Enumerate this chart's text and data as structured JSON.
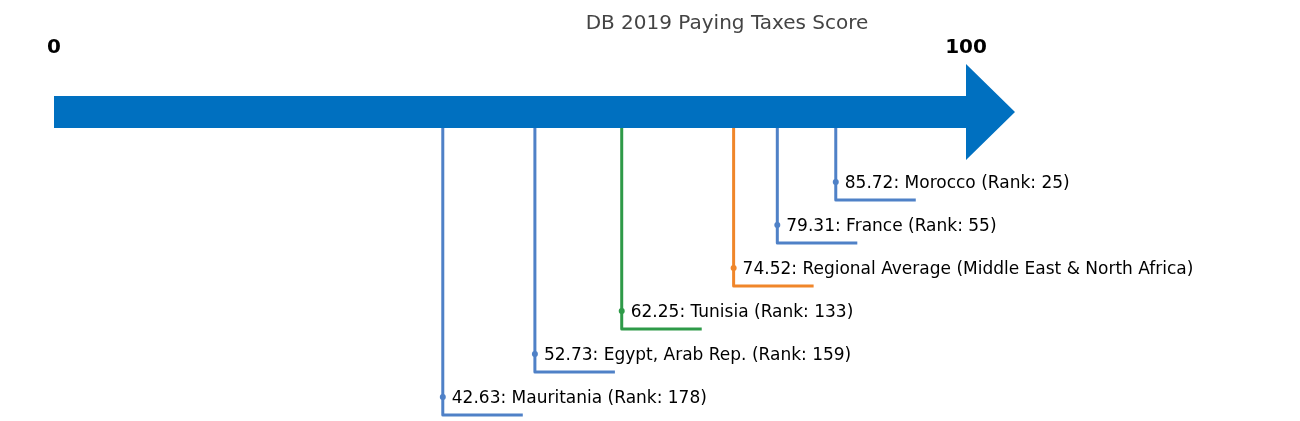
{
  "chart_data": {
    "type": "scatter",
    "orientation": "horizontal",
    "title": "DB 2019 Paying Taxes Score",
    "categories": [
      "Morocco (Rank: 25)",
      "France (Rank: 55)",
      "Regional Average (Middle East & North Africa)",
      "Tunisia (Rank: 133)",
      "Egypt, Arab Rep. (Rank: 159)",
      "Mauritania (Rank: 178)"
    ],
    "values": [
      85.72,
      79.31,
      74.52,
      62.25,
      52.73,
      42.63
    ],
    "colors": [
      "#4f81c7",
      "#4f81c7",
      "#f0862a",
      "#2e9a48",
      "#4f81c7",
      "#4f81c7"
    ],
    "value_labels": [
      "85.72:",
      "79.31:",
      "74.52:",
      "62.25:",
      "52.73:",
      "42.63:"
    ],
    "xlim": [
      0,
      100
    ],
    "xticks": [
      0,
      100
    ],
    "legend": false
  }
}
